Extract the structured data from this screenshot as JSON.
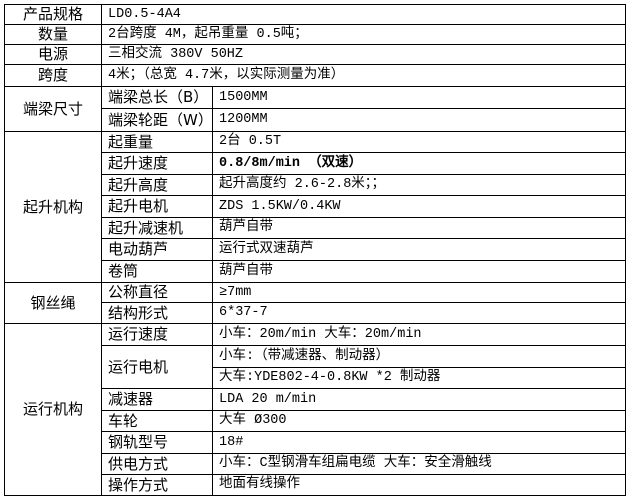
{
  "sections": [
    {
      "label": "产品规格",
      "value": "LD0.5-4A4"
    },
    {
      "label": "数量",
      "value": "2台跨度 4M，起吊重量 0.5吨；"
    },
    {
      "label": "电源",
      "value": "三相交流  380V  50HZ"
    },
    {
      "label": "跨度",
      "value": "4米；（总宽 4.7米，以实际测量为准）"
    },
    {
      "label": "端梁尺寸",
      "rows": [
        {
          "label": "端梁总长（B）",
          "values": [
            "1500MM"
          ]
        },
        {
          "label": "端梁轮距（W）",
          "values": [
            "1200MM"
          ]
        }
      ]
    },
    {
      "label": "起升机构",
      "rows": [
        {
          "label": "起重量",
          "values": [
            "2台 0.5T"
          ]
        },
        {
          "label": "起升速度",
          "values": [
            "0.8/8m/min （双速）"
          ],
          "bold": true
        },
        {
          "label": "起升高度",
          "values": [
            "起升高度约 2.6-2.8米；；"
          ]
        },
        {
          "label": "起升电机",
          "values": [
            "ZDS 1.5KW/0.4KW"
          ]
        },
        {
          "label": "起升减速机",
          "values": [
            "葫芦自带"
          ]
        },
        {
          "label": "电动葫芦",
          "values": [
            "运行式双速葫芦"
          ]
        },
        {
          "label": "卷筒",
          "values": [
            "葫芦自带"
          ]
        }
      ]
    },
    {
      "label": "钢丝绳",
      "rows": [
        {
          "label": "公称直径",
          "values": [
            "≥7mm"
          ]
        },
        {
          "label": "结构形式",
          "values": [
            "6*37-7"
          ]
        }
      ]
    },
    {
      "label": "运行机构",
      "rows": [
        {
          "label": "运行速度",
          "values": [
            "小车：20m/min   大车：20m/min"
          ]
        },
        {
          "label": "运行电机",
          "values": [
            "小车:（带减速器、制动器）",
            "大车:YDE802-4-0.8KW *2 制动器"
          ]
        },
        {
          "label": "减速器",
          "values": [
            "LDA 20 m/min"
          ]
        },
        {
          "label": "车轮",
          "values": [
            "大车 Ø300"
          ]
        },
        {
          "label": "钢轨型号",
          "values": [
            "18#"
          ]
        },
        {
          "label": "供电方式",
          "values": [
            "小车：C型钢滑车组扁电缆    大车：安全滑触线"
          ]
        },
        {
          "label": "操作方式",
          "values": [
            "地面有线操作"
          ]
        }
      ]
    }
  ]
}
